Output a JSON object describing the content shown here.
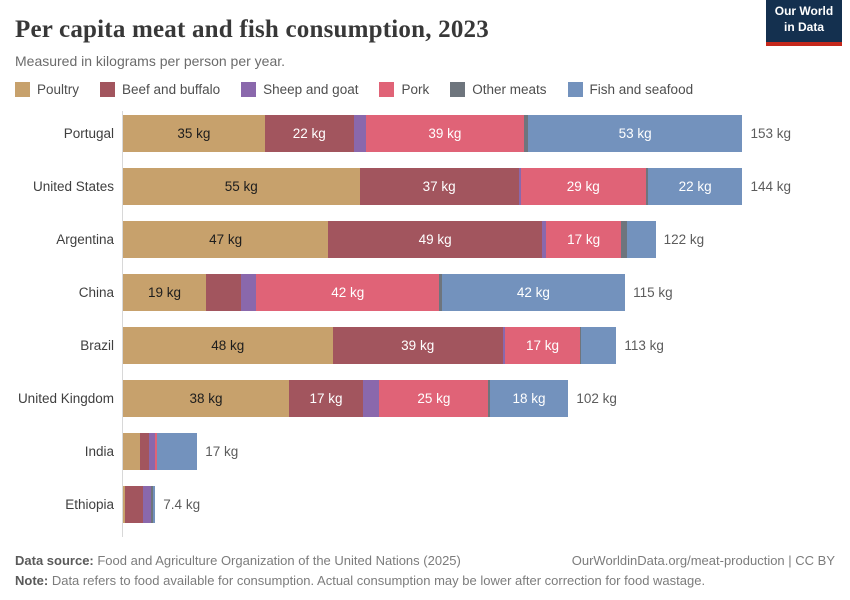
{
  "header": {
    "title": "Per capita meat and fish consumption, 2023",
    "subtitle": "Measured in kilograms per person per year.",
    "logo_line1": "Our World",
    "logo_line2": "in Data",
    "logo_bg": "#14304f",
    "logo_accent": "#c5281c"
  },
  "chart_data": {
    "type": "bar",
    "orientation": "horizontal-stacked",
    "title": "Per capita meat and fish consumption, 2023",
    "subtitle": "Measured in kilograms per person per year.",
    "unit": "kg",
    "xmax": 153,
    "label_threshold": 15,
    "legend_position": "top",
    "grid": false,
    "categories": [
      "Portugal",
      "United States",
      "Argentina",
      "China",
      "Brazil",
      "United Kingdom",
      "India",
      "Ethiopia"
    ],
    "totals": [
      153,
      144,
      122,
      115,
      113,
      102,
      17,
      7.4
    ],
    "total_labels": [
      "153 kg",
      "144 kg",
      "122 kg",
      "115 kg",
      "113 kg",
      "102 kg",
      "17 kg",
      "7.4 kg"
    ],
    "series": [
      {
        "name": "Poultry",
        "color": "#c7a16c",
        "label_color": "#1d1d1d",
        "values": [
          35,
          55,
          47,
          19,
          48,
          38,
          3.9,
          0.5
        ]
      },
      {
        "name": "Beef and buffalo",
        "color": "#a2555e",
        "label_color": "#ffffff",
        "values": [
          22,
          37,
          49,
          8,
          39,
          17,
          2,
          4
        ]
      },
      {
        "name": "Sheep and goat",
        "color": "#8a68ac",
        "label_color": "#ffffff",
        "values": [
          3,
          0.5,
          1,
          3.5,
          0.6,
          3.7,
          1.4,
          1.9
        ]
      },
      {
        "name": "Pork",
        "color": "#e06377",
        "label_color": "#ffffff",
        "values": [
          39,
          29,
          17,
          42,
          17,
          25,
          0.4,
          0.1
        ]
      },
      {
        "name": "Other meats",
        "color": "#6e757d",
        "label_color": "#ffffff",
        "values": [
          1,
          0.5,
          1.5,
          0.5,
          0.4,
          0.3,
          0.1,
          0.4
        ]
      },
      {
        "name": "Fish and seafood",
        "color": "#7392bd",
        "label_color": "#ffffff",
        "values": [
          53,
          22,
          6.5,
          42,
          8,
          18,
          9.2,
          0.5
        ]
      }
    ]
  },
  "footer": {
    "data_source_label": "Data source:",
    "data_source_text": " Food and Agriculture Organization of the United Nations (2025)",
    "link_text": "OurWorldinData.org/meat-production | CC BY",
    "note_label": "Note:",
    "note_text": " Data refers to food available for consumption. Actual consumption may be lower after correction for food wastage."
  }
}
